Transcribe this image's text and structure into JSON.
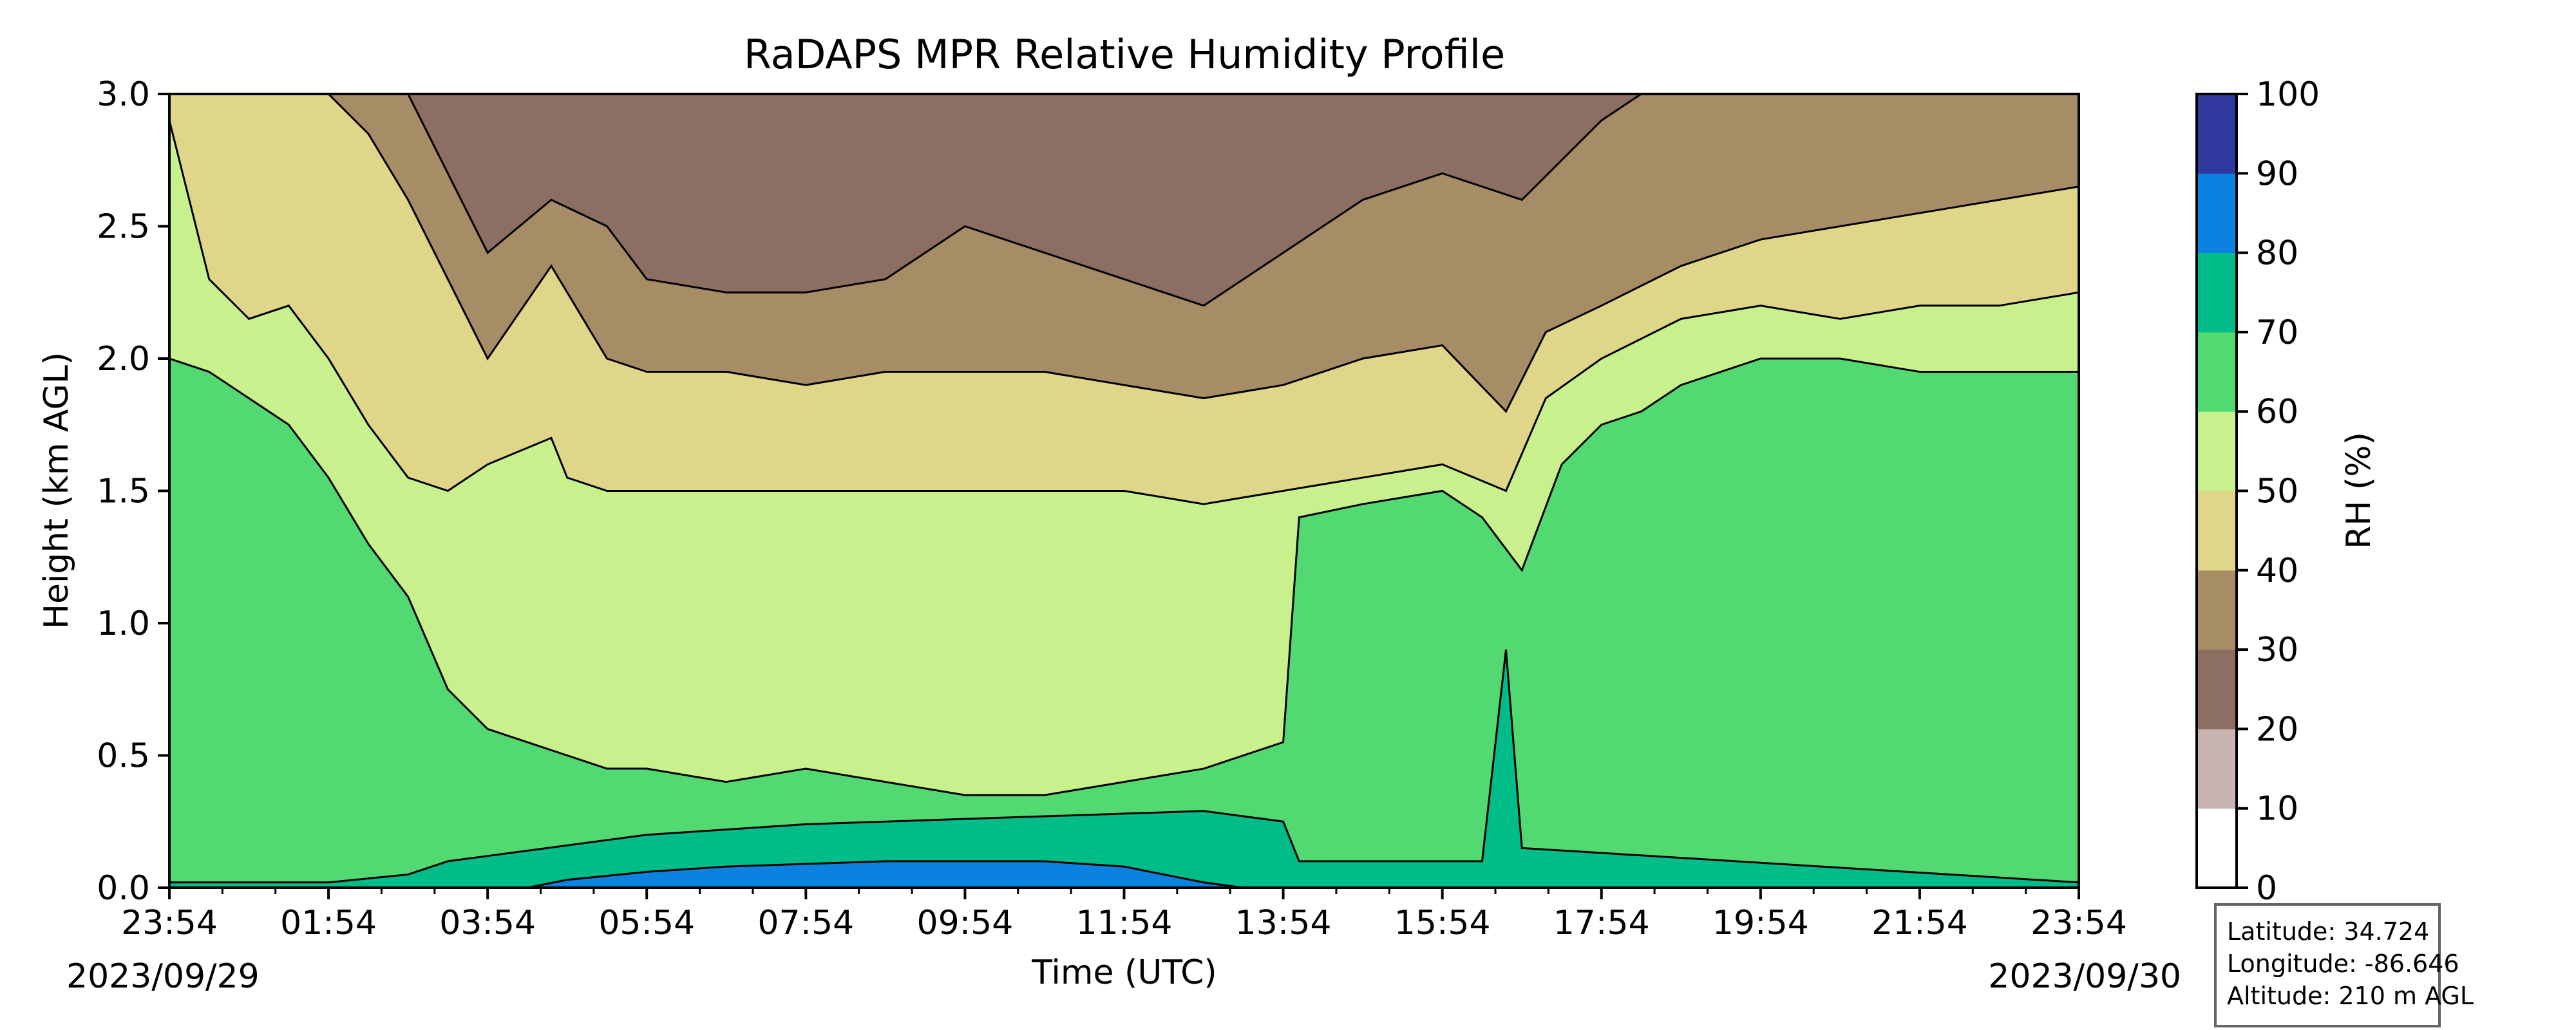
{
  "chart_data": {
    "type": "heatmap",
    "subtype": "filled-contour",
    "title": "RaDAPS MPR Relative Humidity Profile",
    "xlabel": "Time (UTC)",
    "ylabel": "Height (km AGL)",
    "x_ticks": [
      "23:54",
      "01:54",
      "03:54",
      "05:54",
      "07:54",
      "09:54",
      "11:54",
      "13:54",
      "15:54",
      "17:54",
      "19:54",
      "21:54",
      "23:54"
    ],
    "x_minor_ticks_per_major": 2,
    "x_start_date": "2023/09/29",
    "x_end_date": "2023/09/30",
    "xlim_hours": [
      0,
      24
    ],
    "y_ticks": [
      "0.0",
      "0.5",
      "1.0",
      "1.5",
      "2.0",
      "2.5",
      "3.0"
    ],
    "ylim": [
      0,
      3
    ],
    "colorbar": {
      "label": "RH (%)",
      "ticks": [
        "0",
        "10",
        "20",
        "30",
        "40",
        "50",
        "60",
        "70",
        "80",
        "90",
        "100"
      ],
      "levels": [
        0,
        10,
        20,
        30,
        40,
        50,
        60,
        70,
        80,
        90,
        100
      ],
      "colors": [
        "#ffffff",
        "#c8b4b0",
        "#8c6e62",
        "#a68d66",
        "#e0d68a",
        "#c8f18e",
        "#52d971",
        "#00bc89",
        "#0b82e0",
        "#3039a0"
      ]
    },
    "contour_boundaries": [
      {
        "level": 20,
        "x": [
          0,
          4,
          5.5,
          8,
          10,
          12,
          14,
          16,
          17,
          18.5,
          20,
          22,
          24
        ],
        "y": [
          3.1,
          3.1,
          3.1,
          3.1,
          3.1,
          3.1,
          3.1,
          3.1,
          3.1,
          3.1,
          3.1,
          3.1,
          3.1
        ]
      },
      {
        "level": 30,
        "x": [
          0,
          1,
          2,
          3,
          4,
          4.8,
          5.5,
          6,
          7,
          8,
          9,
          10,
          11,
          12,
          13,
          14,
          15,
          16,
          17,
          18,
          19,
          20,
          21,
          22,
          23,
          24
        ],
        "y": [
          3.1,
          3.1,
          3.1,
          3.0,
          2.4,
          2.6,
          2.5,
          2.3,
          2.25,
          2.25,
          2.3,
          2.5,
          2.4,
          2.3,
          2.2,
          2.4,
          2.6,
          2.7,
          2.6,
          2.9,
          3.1,
          3.1,
          3.1,
          3.1,
          3.1,
          3.1
        ]
      },
      {
        "level": 40,
        "x": [
          0,
          1,
          2,
          2.5,
          3,
          3.5,
          4,
          4.8,
          5.5,
          6,
          7,
          8,
          9,
          10,
          11,
          12,
          13,
          14,
          15,
          16,
          16.8,
          17.3,
          18,
          19,
          20,
          21,
          22,
          23,
          24
        ],
        "y": [
          3.1,
          3.1,
          3.0,
          2.85,
          2.6,
          2.3,
          2.0,
          2.35,
          2.0,
          1.95,
          1.95,
          1.9,
          1.95,
          1.95,
          1.95,
          1.9,
          1.85,
          1.9,
          2.0,
          2.05,
          1.8,
          2.1,
          2.2,
          2.35,
          2.45,
          2.5,
          2.55,
          2.6,
          2.65
        ]
      },
      {
        "level": 50,
        "x": [
          0,
          0.5,
          1,
          1.5,
          2,
          2.5,
          3,
          3.5,
          4,
          4.8,
          5,
          5.5,
          6,
          7,
          8,
          9,
          10,
          11,
          12,
          13,
          14,
          15,
          16,
          16.8,
          17.3,
          18,
          19,
          20,
          21,
          22,
          23,
          24
        ],
        "y": [
          2.9,
          2.3,
          2.15,
          2.2,
          2.0,
          1.75,
          1.55,
          1.5,
          1.6,
          1.7,
          1.55,
          1.5,
          1.5,
          1.5,
          1.5,
          1.5,
          1.5,
          1.5,
          1.5,
          1.45,
          1.5,
          1.55,
          1.6,
          1.5,
          1.85,
          2.0,
          2.15,
          2.2,
          2.15,
          2.2,
          2.2,
          2.25
        ]
      },
      {
        "level": 60,
        "x": [
          0,
          0.5,
          1,
          1.5,
          2,
          2.5,
          3,
          3.5,
          4,
          4.5,
          5,
          5.5,
          6,
          7,
          8,
          9,
          10,
          11,
          12,
          13,
          14,
          14.2,
          15,
          16,
          16.5,
          17,
          17.5,
          18,
          18.5,
          19,
          20,
          21,
          22,
          23,
          24
        ],
        "y": [
          2.0,
          1.95,
          1.85,
          1.75,
          1.55,
          1.3,
          1.1,
          0.75,
          0.6,
          0.55,
          0.5,
          0.45,
          0.45,
          0.4,
          0.45,
          0.4,
          0.35,
          0.35,
          0.4,
          0.45,
          0.55,
          1.4,
          1.45,
          1.5,
          1.4,
          1.2,
          1.6,
          1.75,
          1.8,
          1.9,
          2.0,
          2.0,
          1.95,
          1.95,
          1.95
        ]
      },
      {
        "level": 70,
        "x": [
          0,
          2,
          3,
          3.5,
          4,
          5,
          6,
          7,
          8,
          9,
          10,
          11,
          12,
          13,
          13.5,
          14,
          14.2,
          16.5,
          16.8,
          17,
          24
        ],
        "y": [
          0.02,
          0.02,
          0.05,
          0.1,
          0.12,
          0.16,
          0.2,
          0.22,
          0.24,
          0.25,
          0.26,
          0.27,
          0.28,
          0.29,
          0.27,
          0.25,
          0.1,
          0.1,
          0.9,
          0.15,
          0.02
        ]
      },
      {
        "level": 80,
        "x": [
          0,
          4.5,
          5,
          6,
          7,
          8,
          9,
          10,
          11,
          12,
          12.5,
          13,
          13.5
        ],
        "y": [
          0,
          0,
          0.03,
          0.06,
          0.08,
          0.09,
          0.1,
          0.1,
          0.1,
          0.08,
          0.05,
          0.02,
          0
        ]
      }
    ]
  },
  "info_box": {
    "latitude": "Latitude: 34.724",
    "longitude": "Longitude: -86.646",
    "altitude": "Altitude: 210 m AGL"
  }
}
